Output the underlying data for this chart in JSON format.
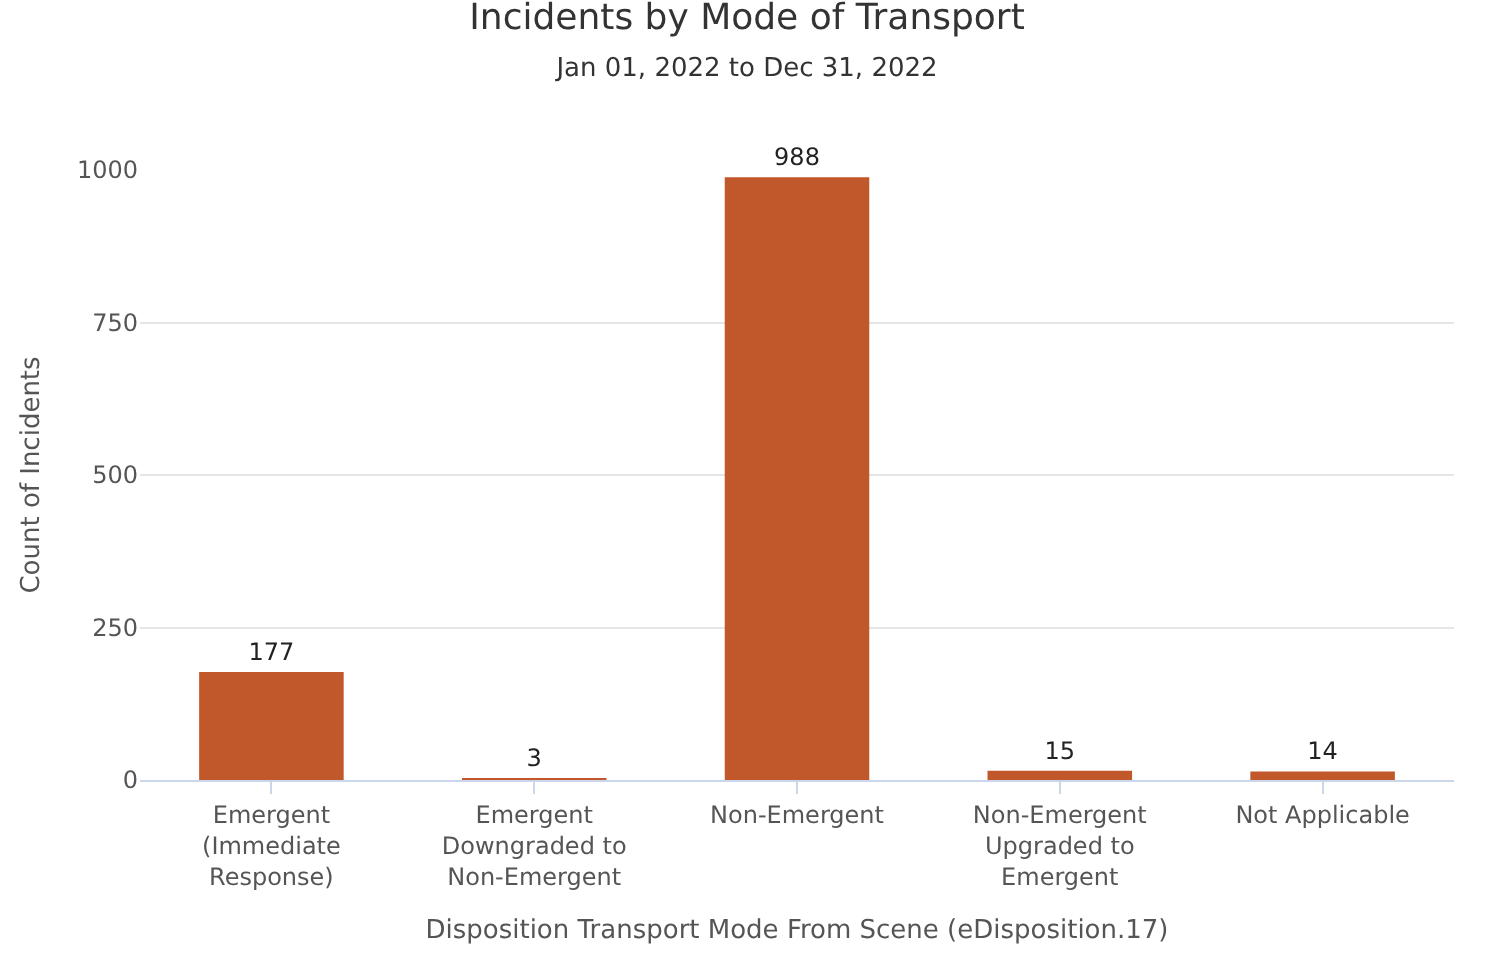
{
  "chart_data": {
    "type": "bar",
    "title": "Incidents by Mode of Transport",
    "subtitle": "Jan 01, 2022 to Dec 31, 2022",
    "xlabel": "Disposition Transport Mode From Scene (eDisposition.17)",
    "ylabel": "Count of Incidents",
    "categories": [
      "Emergent\n(Immediate\nResponse)",
      "Emergent\nDowngraded to\nNon-Emergent",
      "Non-Emergent",
      "Non-Emergent\nUpgraded to\nEmergent",
      "Not Applicable"
    ],
    "values": [
      177,
      3,
      988,
      15,
      14
    ],
    "color": "#c0582b",
    "ylim": [
      0,
      1000
    ],
    "yticks": [
      0,
      250,
      500,
      750,
      1000
    ],
    "grid": "y",
    "data_labels": true
  }
}
